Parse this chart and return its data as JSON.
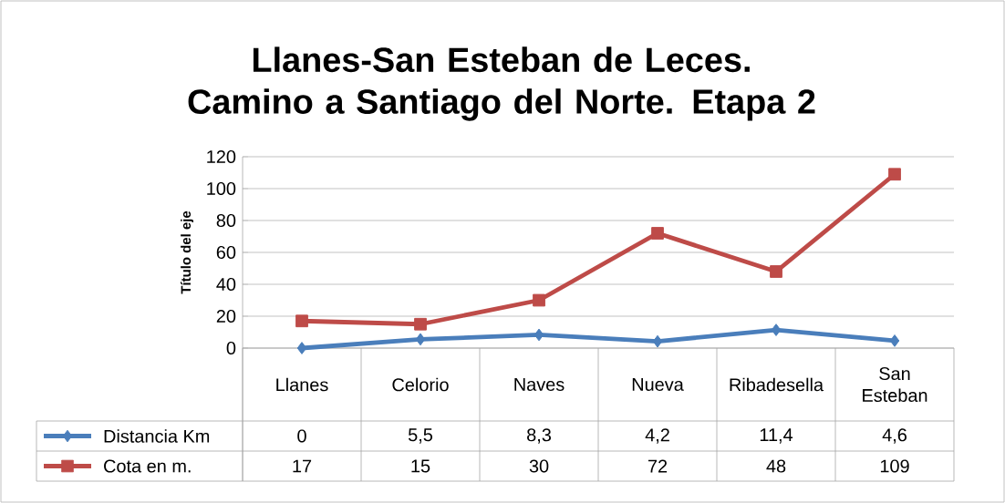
{
  "chart_data": {
    "type": "line",
    "title": "Llanes-San Esteban de Leces. Camino a Santiago del Norte. Etapa 2",
    "ylabel": "Título del eje",
    "categories": [
      "Llanes",
      "Celorio",
      "Naves",
      "Nueva",
      "Ribadesella",
      "San Esteban"
    ],
    "series": [
      {
        "name": "Distancia Km",
        "color": "#4a7ebb",
        "marker": "diamond",
        "values": [
          0,
          5.5,
          8.3,
          4.2,
          11.4,
          4.6
        ],
        "value_labels": [
          "0",
          "5,5",
          "8,3",
          "4,2",
          "11,4",
          "4,6"
        ]
      },
      {
        "name": "Cota en m.",
        "color": "#be4b48",
        "marker": "square",
        "values": [
          17,
          15,
          30,
          72,
          48,
          109
        ],
        "value_labels": [
          "17",
          "15",
          "30",
          "72",
          "48",
          "109"
        ]
      }
    ],
    "ylim": [
      0,
      120
    ],
    "yticks": [
      0,
      20,
      40,
      60,
      80,
      100,
      120
    ],
    "grid": "y",
    "legend": "bottom left"
  }
}
